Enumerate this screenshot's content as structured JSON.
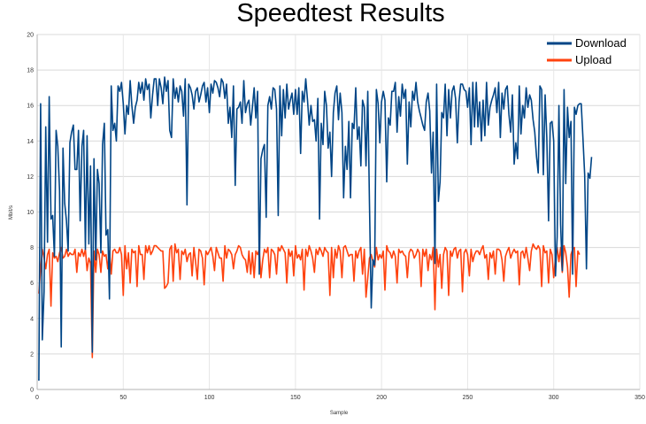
{
  "chart_data": {
    "type": "line",
    "title": "Speedtest Results",
    "xlabel": "Sample",
    "ylabel": "Mbit/s",
    "xlim": [
      0,
      350
    ],
    "ylim": [
      0,
      20
    ],
    "xticks": [
      0,
      50,
      100,
      150,
      200,
      250,
      300,
      350
    ],
    "yticks": [
      0,
      2,
      4,
      6,
      8,
      10,
      12,
      14,
      16,
      18,
      20
    ],
    "grid": true,
    "legend": "top-right",
    "series": [
      {
        "name": "Download",
        "color": "#004586",
        "x_start": 1,
        "x_step": 1,
        "values": [
          0.5,
          16.1,
          2.8,
          5.5,
          14.8,
          8.3,
          16.5,
          9.6,
          9.8,
          7.5,
          14.6,
          13.7,
          11.2,
          2.4,
          13.6,
          10.5,
          9.5,
          7.8,
          13.9,
          14.5,
          14.9,
          12.4,
          12.4,
          14.6,
          9.5,
          13.7,
          14.6,
          7.9,
          14.3,
          8.2,
          12.6,
          2.1,
          13.0,
          7.3,
          12.4,
          11.6,
          7.7,
          13.8,
          15.0,
          8.7,
          9.0,
          5.1,
          17.1,
          14.6,
          15.0,
          14.0,
          17.1,
          16.8,
          17.3,
          16.1,
          14.4,
          16.0,
          15.5,
          17.4,
          16.0,
          15.0,
          15.9,
          16.3,
          17.3,
          16.7,
          17.3,
          16.3,
          17.5,
          16.9,
          17.2,
          15.3,
          16.6,
          17.5,
          17.5,
          16.0,
          17.5,
          17.0,
          16.1,
          17.6,
          16.8,
          17.4,
          14.6,
          14.2,
          17.5,
          16.4,
          17.0,
          16.2,
          17.1,
          16.8,
          15.4,
          17.5,
          10.4,
          17.2,
          17.0,
          16.6,
          15.8,
          16.8,
          17.0,
          16.2,
          16.6,
          17.1,
          17.3,
          16.2,
          17.0,
          15.6,
          17.2,
          16.7,
          17.4,
          17.3,
          17.0,
          16.5,
          17.5,
          17.3,
          16.4,
          17.2,
          15.0,
          15.9,
          14.2,
          17.1,
          11.5,
          15.8,
          15.9,
          16.2,
          15.0,
          17.4,
          15.6,
          16.1,
          16.3,
          14.9,
          15.9,
          17.0,
          15.3,
          16.8,
          6.5,
          13.0,
          13.5,
          13.8,
          9.7,
          16.0,
          16.5,
          15.8,
          17.0,
          16.9,
          15.8,
          9.8,
          17.1,
          14.3,
          16.9,
          15.3,
          17.2,
          15.8,
          16.3,
          16.7,
          15.5,
          16.9,
          15.5,
          17.0,
          13.3,
          16.8,
          16.2,
          17.5,
          16.3,
          14.9,
          16.0,
          15.1,
          15.2,
          14.0,
          16.4,
          9.6,
          15.0,
          13.8,
          16.8,
          16.0,
          13.6,
          14.5,
          12.0,
          15.6,
          16.7,
          17.1,
          15.2,
          16.7,
          15.6,
          10.8,
          13.7,
          12.4,
          15.1,
          10.8,
          15.0,
          14.7,
          17.0,
          14.1,
          14.8,
          12.6,
          16.3,
          15.9,
          12.6,
          16.8,
          10.5,
          4.6,
          7.3,
          7.0,
          16.9,
          16.1,
          13.9,
          16.2,
          16.8,
          16.3,
          11.7,
          15.3,
          14.9,
          16.8,
          16.8,
          17.3,
          14.5,
          16.5,
          15.4,
          17.2,
          16.4,
          16.9,
          12.7,
          16.2,
          14.8,
          16.8,
          16.3,
          17.3,
          16.2,
          15.7,
          15.3,
          14.9,
          14.6,
          16.2,
          16.7,
          15.7,
          12.2,
          14.5,
          7.1,
          17.2,
          10.6,
          11.7,
          15.6,
          15.3,
          17.2,
          14.3,
          16.9,
          15.3,
          16.8,
          17.1,
          16.4,
          13.9,
          16.2,
          17.2,
          17.2,
          16.9,
          16.8,
          15.9,
          17.0,
          13.8,
          17.3,
          14.8,
          17.3,
          14.8,
          16.2,
          14.0,
          16.3,
          14.3,
          17.3,
          14.9,
          15.9,
          16.3,
          16.6,
          17.0,
          15.6,
          17.3,
          14.2,
          16.7,
          15.8,
          16.9,
          17.1,
          15.5,
          14.5,
          16.6,
          12.7,
          13.9,
          13.0,
          17.1,
          14.4,
          16.0,
          15.3,
          17.0,
          15.9,
          16.6,
          16.3,
          15.2,
          14.5,
          13.1,
          12.2,
          17.1,
          16.9,
          12.1,
          16.6,
          14.2,
          9.5,
          15.0,
          15.1,
          14.0,
          6.4,
          8.6,
          16.0,
          9.3,
          6.7,
          16.9,
          11.6,
          15.9,
          14.2,
          15.1,
          6.5,
          15.9,
          15.5,
          16.0,
          16.1,
          16.1,
          14.1,
          12.1,
          6.8,
          12.2,
          11.9,
          13.1
        ]
      },
      {
        "name": "Upload",
        "color": "#ff420e",
        "x_start": 1,
        "x_step": 1,
        "values": [
          5.4,
          6.8,
          7.9,
          7.4,
          6.8,
          7.6,
          7.9,
          4.7,
          7.7,
          7.4,
          7.5,
          7.2,
          7.7,
          8.0,
          7.4,
          7.5,
          7.9,
          7.5,
          7.7,
          7.6,
          7.6,
          7.9,
          6.6,
          7.7,
          7.5,
          7.9,
          7.5,
          7.9,
          6.7,
          7.4,
          7.1,
          1.8,
          7.8,
          6.6,
          7.9,
          7.6,
          6.6,
          7.8,
          7.5,
          7.6,
          6.8,
          7.8,
          6.5,
          7.8,
          7.9,
          7.7,
          7.7,
          8.0,
          7.6,
          5.3,
          8.1,
          6.8,
          7.7,
          6.0,
          7.9,
          7.7,
          7.8,
          5.8,
          8.1,
          7.6,
          7.6,
          6.2,
          8.1,
          7.7,
          8.1,
          7.6,
          7.8,
          8.1,
          8.1,
          8.0,
          7.9,
          7.8,
          7.8,
          5.7,
          5.8,
          6.0,
          7.9,
          8.1,
          6.1,
          8.2,
          7.7,
          7.9,
          6.2,
          7.8,
          7.6,
          7.9,
          7.2,
          7.6,
          7.7,
          6.4,
          8.0,
          7.2,
          6.2,
          7.9,
          7.8,
          7.4,
          5.9,
          7.8,
          7.6,
          7.8,
          8.0,
          7.5,
          6.7,
          8.0,
          7.7,
          7.4,
          7.4,
          6.1,
          8.1,
          7.4,
          7.9,
          7.8,
          7.6,
          6.8,
          7.6,
          7.8,
          8.1,
          8.0,
          7.6,
          7.4,
          7.3,
          6.6,
          7.8,
          6.5,
          7.7,
          6.3,
          7.8,
          7.6,
          7.9,
          6.3,
          7.3,
          7.9,
          7.7,
          8.0,
          6.3,
          7.9,
          7.8,
          7.6,
          6.5,
          8.0,
          7.8,
          8.1,
          7.9,
          7.7,
          6.0,
          7.9,
          7.5,
          7.8,
          6.4,
          8.1,
          7.4,
          7.6,
          7.3,
          7.9,
          5.6,
          7.9,
          7.5,
          8.1,
          7.8,
          7.4,
          6.6,
          7.9,
          7.6,
          8.0,
          7.8,
          7.5,
          8.0,
          7.8,
          7.7,
          5.3,
          8.0,
          6.3,
          7.9,
          7.4,
          8.1,
          7.8,
          6.3,
          8.0,
          8.1,
          7.8,
          7.5,
          7.6,
          7.6,
          6.1,
          7.8,
          7.4,
          7.8,
          8.0,
          6.5,
          7.9,
          5.2,
          6.3,
          7.4,
          7.6,
          7.2,
          6.9,
          8.0,
          7.3,
          7.6,
          7.4,
          7.8,
          5.6,
          8.1,
          7.8,
          7.7,
          7.4,
          7.8,
          7.5,
          6.0,
          7.9,
          7.7,
          7.8,
          7.6,
          7.5,
          6.3,
          7.7,
          7.9,
          7.8,
          7.4,
          7.6,
          7.9,
          7.7,
          5.8,
          7.9,
          7.5,
          7.9,
          6.7,
          7.6,
          7.3,
          8.0,
          4.5,
          7.9,
          6.9,
          7.6,
          5.7,
          7.6,
          8.0,
          7.8,
          5.3,
          7.8,
          7.5,
          7.9,
          8.0,
          7.4,
          7.8,
          7.9,
          5.5,
          7.7,
          7.9,
          7.6,
          6.4,
          7.9,
          7.2,
          7.6,
          7.8,
          7.8,
          7.6,
          7.9,
          8.1,
          7.4,
          7.6,
          6.2,
          7.7,
          7.4,
          7.8,
          6.5,
          7.9,
          7.9,
          7.8,
          7.3,
          6.1,
          7.5,
          7.8,
          8.0,
          7.4,
          7.7,
          7.9,
          7.7,
          7.8,
          5.9,
          7.7,
          7.8,
          7.4,
          8.0,
          7.4,
          6.7,
          7.8,
          8.2,
          8.0,
          7.9,
          8.1,
          7.9,
          5.8,
          8.1,
          7.7,
          7.8,
          6.0,
          7.9,
          7.6,
          6.3,
          7.4,
          8.0,
          7.2,
          8.0,
          6.6,
          8.1,
          7.7,
          6.9,
          5.2,
          7.6,
          7.9,
          8.0,
          5.8,
          7.8,
          7.6
        ]
      }
    ]
  }
}
